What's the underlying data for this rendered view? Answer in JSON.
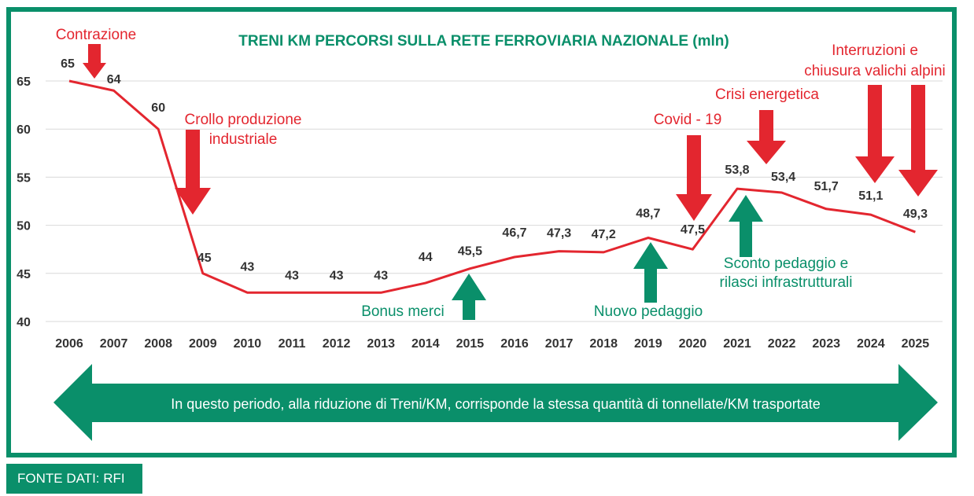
{
  "chart_data": {
    "type": "line",
    "title": "TRENI KM PERCORSI SULLA RETE FERROVIARIA NAZIONALE (mln)",
    "xlabel": "",
    "ylabel": "",
    "ylim": [
      40,
      65
    ],
    "yticks": [
      "40",
      "45",
      "50",
      "55",
      "60",
      "65"
    ],
    "grid": true,
    "categories": [
      "2006",
      "2007",
      "2008",
      "2009",
      "2010",
      "2011",
      "2012",
      "2013",
      "2014",
      "2015",
      "2016",
      "2017",
      "2018",
      "2019",
      "2020",
      "2021",
      "2022",
      "2023",
      "2024",
      "2025"
    ],
    "values": [
      65,
      64,
      60,
      45,
      43,
      43,
      43,
      43,
      44,
      45.5,
      46.7,
      47.3,
      47.2,
      48.7,
      47.5,
      53.8,
      53.4,
      51.7,
      51.1,
      49.3
    ],
    "data_labels": [
      "65",
      "64",
      "60",
      "45",
      "43",
      "43",
      "43",
      "43",
      "44",
      "45,5",
      "46,7",
      "47,3",
      "47,2",
      "48,7",
      "47,5",
      "53,8",
      "53,4",
      "51,7",
      "51,1",
      "49,3"
    ],
    "series_color": "#e3262f",
    "annotations": [
      {
        "lines": [
          "Contrazione"
        ],
        "color": "red",
        "arrow": "down"
      },
      {
        "lines": [
          "Crollo produzione",
          "industriale"
        ],
        "color": "red",
        "arrow": "down"
      },
      {
        "lines": [
          "Bonus merci"
        ],
        "color": "green",
        "arrow": "up"
      },
      {
        "lines": [
          "Nuovo pedaggio"
        ],
        "color": "green",
        "arrow": "up"
      },
      {
        "lines": [
          "Covid - 19"
        ],
        "color": "red",
        "arrow": "down"
      },
      {
        "lines": [
          "Sconto pedaggio e",
          "rilasci infrastrutturali"
        ],
        "color": "green",
        "arrow": "up"
      },
      {
        "lines": [
          "Crisi energetica"
        ],
        "color": "red",
        "arrow": "down"
      },
      {
        "lines": [
          "Interruzioni e",
          "chiusura valichi alpini"
        ],
        "color": "red",
        "arrow": "down"
      }
    ]
  },
  "banner": {
    "text": "In questo periodo, alla riduzione di Treni/KM, corrisponde la stessa quantità di tonnellate/KM trasportate",
    "color": "#0a8f6a"
  },
  "source": {
    "label": "FONTE DATI: RFI"
  },
  "colors": {
    "frame": "#0a8f6a",
    "red": "#e3262f",
    "green": "#0a8f6a",
    "grid": "#d9d9d9"
  }
}
